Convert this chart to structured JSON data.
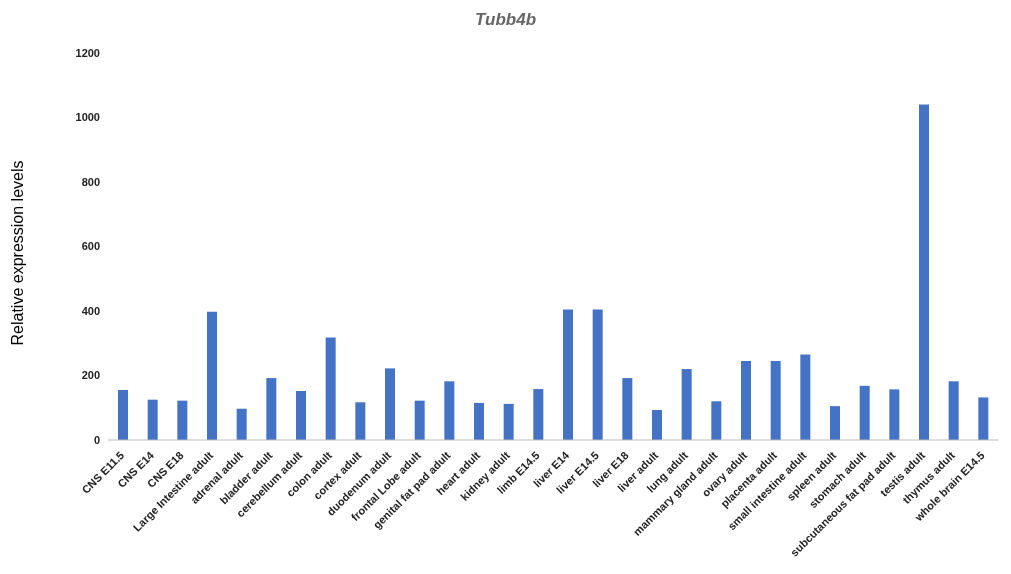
{
  "chart_data": {
    "type": "bar",
    "title": "Tubb4b",
    "ylabel": "Relative expression levels",
    "categories": [
      "CNS E11.5",
      "CNS E14",
      "CNS E18",
      "Large Intestine adult",
      "adrenal adult",
      "bladder adult",
      "cerebellum adult",
      "colon adult",
      "cortex adult",
      "duodenum adult",
      "frontal Lobe adult",
      "genital fat pad adult",
      "heart adult",
      "kidney adult",
      "limb E14.5",
      "liver E14",
      "liver E14.5",
      "liver E18",
      "liver adult",
      "lung adult",
      "mammary gland adult",
      "ovary adult",
      "placenta adult",
      "small intestine adult",
      "spleen adult",
      "stomach adult",
      "subcutaneous fat pad adult",
      "testis adult",
      "thymus adult",
      "whole brain E14.5"
    ],
    "values": [
      155,
      125,
      122,
      398,
      97,
      192,
      152,
      318,
      117,
      222,
      122,
      182,
      115,
      112,
      158,
      405,
      405,
      192,
      93,
      220,
      120,
      245,
      245,
      265,
      105,
      168,
      157,
      1040,
      182,
      132
    ],
    "color": "#4472c4",
    "ylim": [
      0,
      1200
    ],
    "yticks": [
      0,
      200,
      400,
      600,
      800,
      1000,
      1200
    ],
    "grid": false,
    "legend": false
  }
}
